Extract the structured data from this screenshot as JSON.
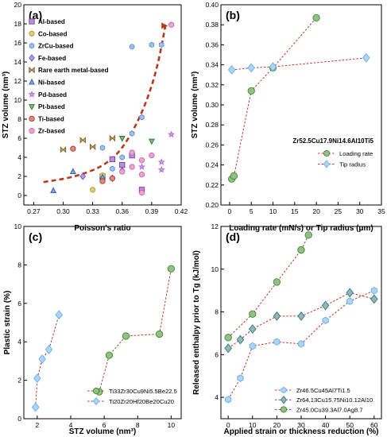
{
  "chart_data": [
    {
      "panel": "(a)",
      "type": "scatter",
      "xlabel": "Poisson's ratio",
      "ylabel": "STZ volume (nm³)",
      "xlim": [
        0.26,
        0.42
      ],
      "ylim": [
        -1,
        20
      ],
      "xticks": [
        "0.27",
        "0.30",
        "0.33",
        "0.36",
        "0.39",
        "0.42"
      ],
      "yticks": [
        "0",
        "2",
        "4",
        "6",
        "8",
        "10",
        "12",
        "14",
        "16",
        "18",
        "20"
      ],
      "legend_position": "left",
      "trend_curve": {
        "x": [
          0.28,
          0.31,
          0.34,
          0.36,
          0.38,
          0.395,
          0.404
        ],
        "y": [
          1.4,
          1.9,
          3.0,
          4.8,
          8.5,
          13.0,
          17.8
        ]
      },
      "series": [
        {
          "name": "Al-based",
          "color": "#7b3aa8",
          "marker": "square",
          "x": [
            0.34,
            0.35,
            0.36,
            0.37,
            0.38
          ],
          "y": [
            2.0,
            3.8,
            3.2,
            4.2,
            0.6
          ]
        },
        {
          "name": "Co-based",
          "color": "#b8a020",
          "marker": "circle",
          "x": [
            0.33,
            0.34
          ],
          "y": [
            0.6,
            2.1
          ]
        },
        {
          "name": "ZrCu-based",
          "color": "#5a8ed8",
          "marker": "hexagon",
          "x": [
            0.34,
            0.35,
            0.36,
            0.37,
            0.37,
            0.38,
            0.39,
            0.4
          ],
          "y": [
            5.0,
            2.8,
            4.0,
            6.5,
            15.6,
            8.2,
            15.8,
            15.8
          ]
        },
        {
          "name": "Fe-based",
          "color": "#6a52c8",
          "marker": "diamond",
          "x": [
            0.32,
            0.35,
            0.36
          ],
          "y": [
            2.0,
            1.8,
            2.6
          ]
        },
        {
          "name": "Rare earth metal-based",
          "color": "#7a6420",
          "marker": "bowtie",
          "x": [
            0.3,
            0.32,
            0.33,
            0.35
          ],
          "y": [
            4.8,
            5.8,
            5.1,
            6.0
          ]
        },
        {
          "name": "Ni-based",
          "color": "#2a5aa8",
          "marker": "triangle",
          "x": [
            0.29,
            0.31,
            0.34
          ],
          "y": [
            0.5,
            2.5,
            1.9
          ]
        },
        {
          "name": "Pd-based",
          "color": "#b060d8",
          "marker": "star",
          "x": [
            0.38,
            0.4,
            0.4,
            0.41
          ],
          "y": [
            3.0,
            3.5,
            2.7,
            6.4
          ]
        },
        {
          "name": "Pt-based",
          "color": "#1e7a1e",
          "marker": "triangle-down",
          "x": [
            0.36,
            0.39
          ],
          "y": [
            6.0,
            5.7
          ]
        },
        {
          "name": "Ti-based",
          "color": "#b83020",
          "marker": "circle",
          "x": [
            0.31,
            0.34,
            0.35
          ],
          "y": [
            4.9,
            1.5,
            1.8
          ]
        },
        {
          "name": "Zr-based",
          "color": "#d060a8",
          "marker": "circle",
          "x": [
            0.36,
            0.37,
            0.37,
            0.38,
            0.38,
            0.38,
            0.39,
            0.41
          ],
          "y": [
            2.5,
            3.0,
            4.5,
            2.2,
            3.7,
            0.3,
            4.2,
            17.9
          ]
        }
      ]
    },
    {
      "panel": "(b)",
      "type": "line",
      "xlabel": "Loading rate (mN/s) or Tip radius (μm)",
      "ylabel": "STZ volume (nm³)",
      "xlim": [
        -2,
        35
      ],
      "ylim": [
        0.2,
        0.4
      ],
      "xticks": [
        "0",
        "5",
        "10",
        "15",
        "20",
        "25",
        "30",
        "35"
      ],
      "yticks": [
        "0.20",
        "0.22",
        "0.24",
        "0.26",
        "0.28",
        "0.30",
        "0.32",
        "0.34",
        "0.36",
        "0.38",
        "0.40"
      ],
      "legend_title": "Zr52.5Cu17.9Ni14.6Al10Ti5",
      "legend_position": "bottom-right",
      "series": [
        {
          "name": "Loading rate",
          "color": "#3a8a2a",
          "marker": "circle",
          "x": [
            0.5,
            1.0,
            5.0,
            10.0,
            20.0
          ],
          "y": [
            0.226,
            0.229,
            0.314,
            0.337,
            0.387
          ]
        },
        {
          "name": "Tip radius",
          "color": "#6ab0e8",
          "marker": "diamond",
          "x": [
            0.5,
            5.0,
            10.0,
            31.5
          ],
          "y": [
            0.335,
            0.337,
            0.338,
            0.347
          ]
        }
      ]
    },
    {
      "panel": "(c)",
      "type": "line",
      "xlabel": "STZ volume (nm³)",
      "ylabel": "Plastic strain (%)",
      "xlim": [
        1.2,
        10.6
      ],
      "ylim": [
        0,
        10
      ],
      "xticks": [
        "2",
        "4",
        "6",
        "8",
        "10"
      ],
      "yticks": [
        "0",
        "2",
        "4",
        "6",
        "8",
        "10"
      ],
      "legend_position": "bottom-right",
      "series": [
        {
          "name": "Ti33Zr30Cu9Ni5.5Be22.5",
          "color": "#3a8a2a",
          "marker": "circle",
          "x": [
            5.7,
            6.3,
            7.3,
            9.3,
            10.0
          ],
          "y": [
            1.4,
            3.3,
            4.3,
            4.4,
            7.8
          ]
        },
        {
          "name": "Ti20Zr20Hf20Be20Cu20",
          "color": "#6ab0e8",
          "marker": "diamond",
          "x": [
            1.9,
            2.0,
            2.3,
            2.7,
            3.3
          ],
          "y": [
            0.6,
            2.1,
            3.1,
            3.6,
            5.4
          ]
        }
      ]
    },
    {
      "panel": "(d)",
      "type": "line",
      "xlabel": "Applied strain or thickness reduction (%)",
      "ylabel": "Released enthalpy prior to Tg (kJ/mol)",
      "xlim": [
        -3,
        63
      ],
      "ylim": [
        3,
        12
      ],
      "xticks": [
        "0",
        "10",
        "20",
        "30",
        "40",
        "50",
        "60"
      ],
      "yticks": [
        "4",
        "6",
        "8",
        "10",
        "12"
      ],
      "legend_position": "bottom-right",
      "series": [
        {
          "name": "Zr46.5Cu45Al7Ti1.5",
          "color": "#6ab0e8",
          "marker": "hexagon",
          "x": [
            0,
            5,
            10,
            20,
            30,
            40,
            50,
            60
          ],
          "y": [
            3.9,
            4.9,
            6.4,
            6.6,
            6.5,
            7.6,
            8.5,
            9.0
          ]
        },
        {
          "name": "Zr64.13Cu15.75Ni10.12Al10",
          "color": "#3a7a7a",
          "marker": "diamond",
          "x": [
            0,
            5,
            10,
            20,
            30,
            40,
            50,
            60
          ],
          "y": [
            6.3,
            6.7,
            7.2,
            7.8,
            7.8,
            8.3,
            8.9,
            8.6
          ]
        },
        {
          "name": "Zr45.0Cu39.3Al7.0Ag8.7",
          "color": "#3a8a2a",
          "marker": "circle",
          "x": [
            0,
            10,
            20,
            30,
            33
          ],
          "y": [
            6.8,
            7.9,
            9.4,
            10.9,
            11.6
          ]
        }
      ]
    }
  ]
}
